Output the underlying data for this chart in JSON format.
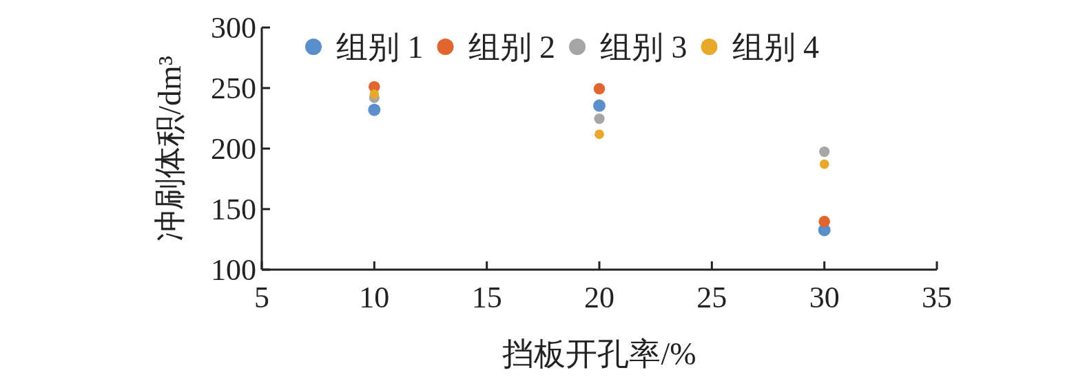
{
  "chart_data": {
    "type": "scatter",
    "xlabel": "挡板开孔率/%",
    "ylabel": "冲刷体积/dm³",
    "x": [
      10,
      20,
      30
    ],
    "xlim": [
      5,
      35
    ],
    "xticks": [
      5,
      10,
      15,
      20,
      25,
      30,
      35
    ],
    "ylim": [
      100,
      300
    ],
    "yticks": [
      100,
      150,
      200,
      250,
      300
    ],
    "marker": "circle",
    "legend": "top",
    "grid": false,
    "series": [
      {
        "name": "组别 1",
        "color": "#5b8fcb",
        "values": [
          232,
          235.5,
          132.7
        ]
      },
      {
        "name": "组别 2",
        "color": "#e0652e",
        "values": [
          251,
          249.4,
          139.7
        ]
      },
      {
        "name": "组别 3",
        "color": "#a5a5a5",
        "values": [
          242,
          224.7,
          197.4
        ]
      },
      {
        "name": "组别 4",
        "color": "#e8a82a",
        "values": [
          245,
          211.8,
          187.2
        ]
      }
    ]
  }
}
